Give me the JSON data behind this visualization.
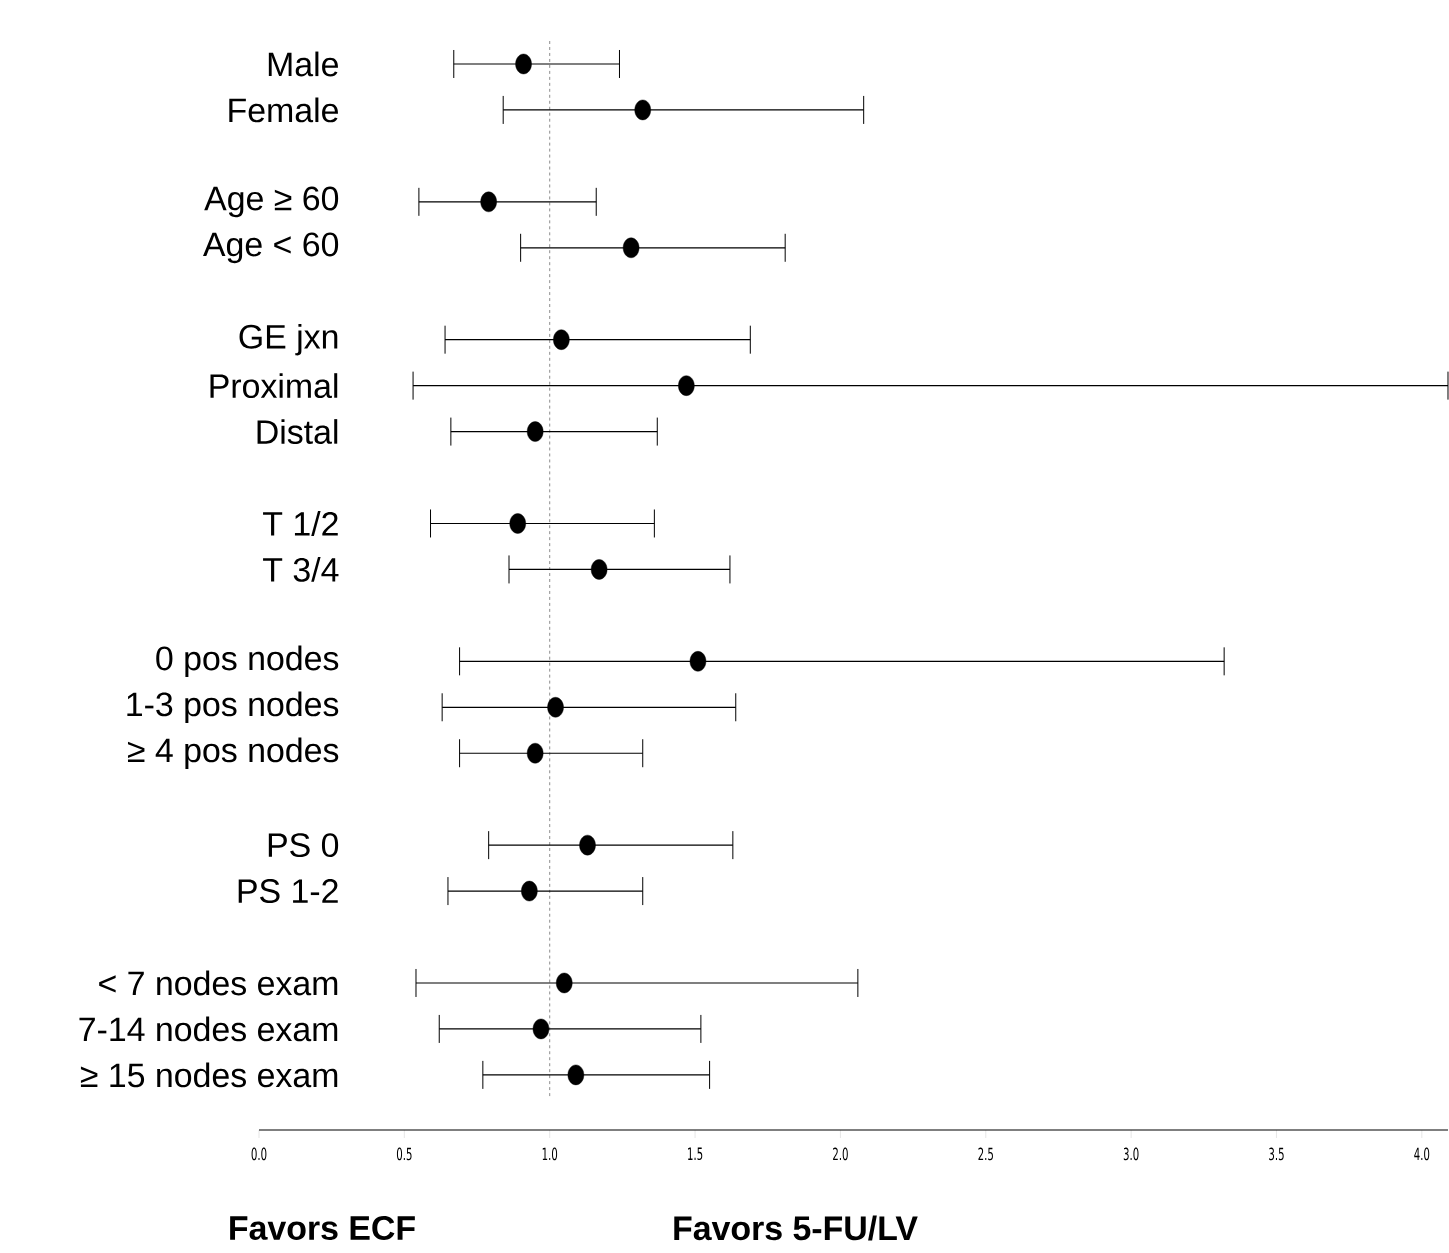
{
  "chart_data": {
    "type": "scatter",
    "orientation": "horizontal",
    "categories": [
      "Male",
      "Female",
      null,
      "Age ≥ 60",
      "Age < 60",
      null,
      "GE jxn",
      "Proximal",
      "Distal",
      null,
      "T 1/2",
      "T 3/4",
      null,
      "0 pos nodes",
      "1-3 pos nodes",
      "≥ 4 pos nodes",
      null,
      "PS 0",
      "PS 1-2",
      null,
      "< 7 nodes exam",
      "7-14 nodes exam",
      "≥ 15 nodes exam"
    ],
    "values": [
      0.91,
      1.32,
      null,
      0.79,
      1.28,
      null,
      1.04,
      1.47,
      0.95,
      null,
      0.89,
      1.17,
      null,
      1.51,
      1.02,
      0.95,
      null,
      1.13,
      0.93,
      null,
      1.05,
      0.97,
      1.09
    ],
    "errors": [
      [
        0.67,
        1.24
      ],
      [
        0.84,
        2.08
      ],
      null,
      [
        0.55,
        1.16
      ],
      [
        0.9,
        1.81
      ],
      null,
      [
        0.64,
        1.69
      ],
      [
        0.53,
        4.09
      ],
      [
        0.66,
        1.37
      ],
      null,
      [
        0.59,
        1.36
      ],
      [
        0.86,
        1.62
      ],
      null,
      [
        0.69,
        3.32
      ],
      [
        0.63,
        1.64
      ],
      [
        0.69,
        1.32
      ],
      null,
      [
        0.79,
        1.63
      ],
      [
        0.65,
        1.32
      ],
      null,
      [
        0.54,
        2.06
      ],
      [
        0.62,
        1.52
      ],
      [
        0.77,
        1.55
      ]
    ],
    "color": "#000000",
    "marker": "circle",
    "xlim": [
      0,
      4.09
    ],
    "xticks": [
      {
        "value": 0,
        "label": "0.0"
      },
      {
        "value": 0.5,
        "label": "0.5"
      },
      {
        "value": 1,
        "label": "1.0"
      },
      {
        "value": 1.5,
        "label": "1.5"
      },
      {
        "value": 2,
        "label": "2.0"
      },
      {
        "value": 2.5,
        "label": "2.5"
      },
      {
        "value": 3,
        "label": "3.0"
      },
      {
        "value": 3.5,
        "label": "3.5"
      },
      {
        "value": 4,
        "label": "4.0"
      }
    ],
    "ref_lines": [
      {
        "axis": "x",
        "value": 1,
        "color": "#808080",
        "line_style": "dashed"
      }
    ],
    "annotations": [
      "Favors ECF",
      "Favors 5-FU/LV"
    ]
  }
}
